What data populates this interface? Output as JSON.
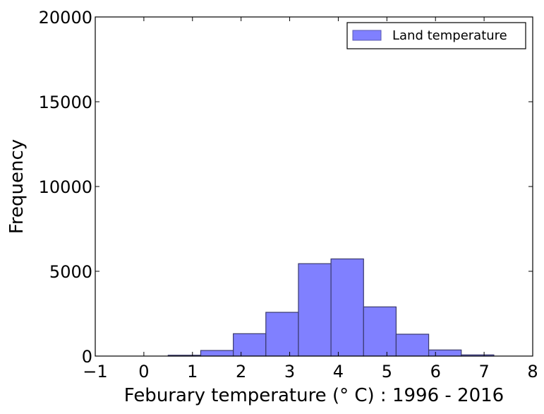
{
  "chart_data": {
    "type": "bar",
    "xlabel": "Feburary temperature (° C) : 1996 - 2016",
    "ylabel": "Frequency",
    "xlim": [
      -1,
      8
    ],
    "ylim": [
      0,
      20000
    ],
    "xticks": [
      "−1",
      "0",
      "1",
      "2",
      "3",
      "4",
      "5",
      "6",
      "7",
      "8"
    ],
    "xtick_values": [
      -1,
      0,
      1,
      2,
      3,
      4,
      5,
      6,
      7,
      8
    ],
    "yticks": [
      "0",
      "5000",
      "10000",
      "15000",
      "20000"
    ],
    "ytick_values": [
      0,
      5000,
      10000,
      15000,
      20000
    ],
    "grid": false,
    "legend_placement": "top-right",
    "series": [
      {
        "name": "Land temperature",
        "color": "#8080ff",
        "bins": [
          {
            "x0": 0.5,
            "x1": 1.17,
            "value": 50
          },
          {
            "x0": 1.17,
            "x1": 1.84,
            "value": 330
          },
          {
            "x0": 1.84,
            "x1": 2.51,
            "value": 1320
          },
          {
            "x0": 2.51,
            "x1": 3.18,
            "value": 2580
          },
          {
            "x0": 3.18,
            "x1": 3.85,
            "value": 5450
          },
          {
            "x0": 3.85,
            "x1": 4.52,
            "value": 5730
          },
          {
            "x0": 4.52,
            "x1": 5.19,
            "value": 2900
          },
          {
            "x0": 5.19,
            "x1": 5.86,
            "value": 1290
          },
          {
            "x0": 5.86,
            "x1": 6.53,
            "value": 360
          },
          {
            "x0": 6.53,
            "x1": 7.2,
            "value": 70
          }
        ]
      }
    ]
  }
}
